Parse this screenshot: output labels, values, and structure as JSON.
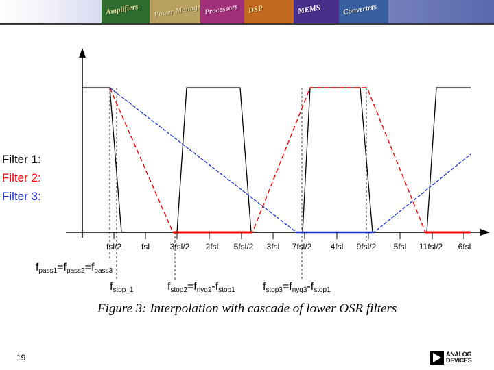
{
  "header": {
    "tiles": [
      {
        "text": "Amplifiers",
        "color": "#e8e1a0",
        "bg": "#2e6b2e"
      },
      {
        "text": "Power Management",
        "color": "#e0d0a0",
        "bg": "#b8a060"
      },
      {
        "text": "Processors",
        "color": "#ffd0f0",
        "bg": "#a0307a"
      },
      {
        "text": "DSP",
        "color": "#ffe6a0",
        "bg": "#c46a20"
      },
      {
        "text": "MEMS",
        "color": "#ffffff",
        "bg": "#4a2f8a"
      },
      {
        "text": "Converters",
        "color": "#ffffff",
        "bg": "#3a5fa0"
      }
    ]
  },
  "legend": {
    "filter1": {
      "label": "Filter 1:",
      "color": "#000000"
    },
    "filter2": {
      "label": "Filter 2:",
      "color": "#ff0000"
    },
    "filter3": {
      "label": "Filter 3:",
      "color": "#1a2fd0"
    }
  },
  "axis": {
    "ticks": [
      "fsl/2",
      "fsl",
      "3fsl/2",
      "2fsl",
      "5fsl/2",
      "3fsl",
      "7fsl/2",
      "4fsl",
      "9fsl/2",
      "5fsl",
      "11fsl/2",
      "6fsl"
    ]
  },
  "annotations": {
    "fpass": {
      "f1": "f",
      "s1": "pass1",
      "eq1": "=f",
      "s2": "pass2",
      "eq2": "=f",
      "s3": "pass3"
    },
    "fstop1": {
      "f": "f",
      "s": "stop_1"
    },
    "fstop2": {
      "f": "f",
      "s1": "stop2",
      "eq1": "=f",
      "s2": "nyq2",
      "eq2": "-f",
      "s3": "stop1"
    },
    "fstop3": {
      "f": "f",
      "s1": "stop3",
      "eq1": "=f",
      "s2": "nyq3",
      "eq2": "-f",
      "s3": "stop1"
    }
  },
  "caption": "Figure 3: Interpolation with cascade of lower OSR filters",
  "footer": {
    "page_number": "19",
    "logo_line1": "ANALOG",
    "logo_line2": "DEVICES"
  }
}
